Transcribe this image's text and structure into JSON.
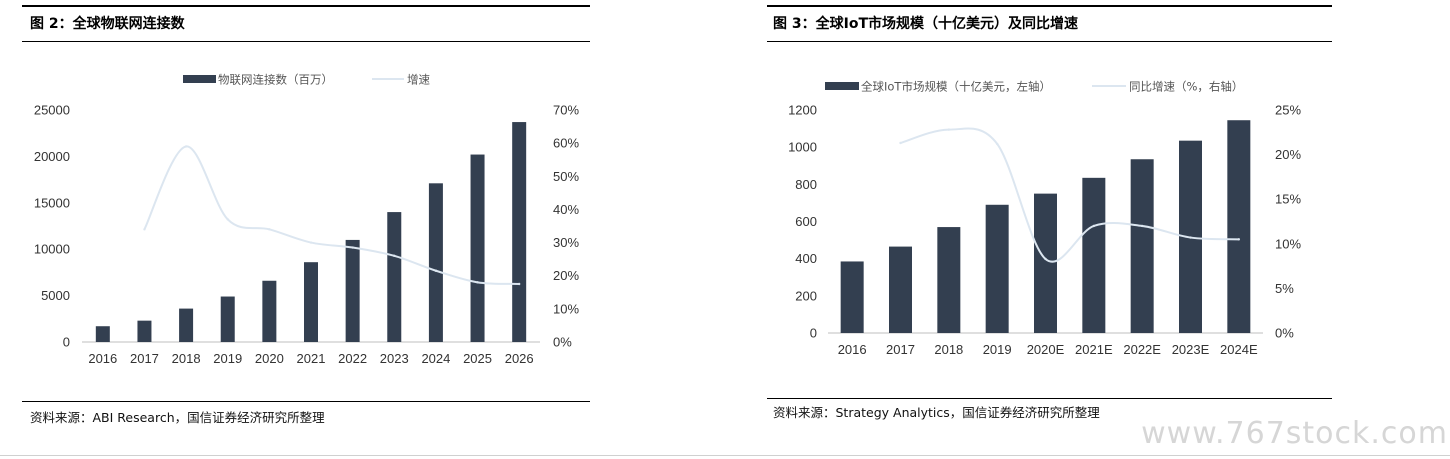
{
  "figures": [
    {
      "title": "图 2：全球物联网连接数",
      "source": "资料来源：ABI Research，国信证券经济研究所整理",
      "legend": {
        "bar": "物联网连接数（百万）",
        "line": "增速"
      },
      "left_ticks": [
        "25000",
        "20000",
        "15000",
        "10000",
        "5000",
        "0"
      ],
      "right_ticks": [
        "70%",
        "60%",
        "50%",
        "40%",
        "30%",
        "20%",
        "10%",
        "0%"
      ]
    },
    {
      "title": "图 3：全球IoT市场规模（十亿美元）及同比增速",
      "source": "资料来源：Strategy Analytics，国信证券经济研究所整理",
      "legend": {
        "bar": "全球IoT市场规模（十亿美元，左轴）",
        "line": "同比增速（%，右轴）"
      },
      "left_ticks": [
        "1200",
        "1000",
        "800",
        "600",
        "400",
        "200",
        "0"
      ],
      "right_ticks": [
        "25%",
        "20%",
        "15%",
        "10%",
        "5%",
        "0%"
      ]
    }
  ],
  "chart_data": [
    {
      "type": "bar",
      "title": "图 2：全球物联网连接数",
      "categories": [
        "2016",
        "2017",
        "2018",
        "2019",
        "2020",
        "2021",
        "2022",
        "2023",
        "2024",
        "2025",
        "2026"
      ],
      "series": [
        {
          "name": "物联网连接数（百万）",
          "type": "bar",
          "axis": "left",
          "color": "#333f50",
          "values": [
            1700,
            2300,
            3600,
            4900,
            6600,
            8600,
            11000,
            14000,
            17100,
            20200,
            23700
          ]
        },
        {
          "name": "增速",
          "type": "line",
          "axis": "right",
          "color": "#dce6f0",
          "values": [
            null,
            34,
            59,
            37,
            34,
            30,
            28.5,
            26,
            21.5,
            18,
            17.5
          ]
        }
      ],
      "ylim_left": [
        0,
        25000
      ],
      "ylim_right": [
        0,
        70
      ],
      "legend_position": "top",
      "grid": false
    },
    {
      "type": "bar",
      "title": "图 3：全球IoT市场规模（十亿美元）及同比增速",
      "categories": [
        "2016",
        "2017",
        "2018",
        "2019",
        "2020E",
        "2021E",
        "2022E",
        "2023E",
        "2024E"
      ],
      "series": [
        {
          "name": "全球IoT市场规模（十亿美元，左轴）",
          "type": "bar",
          "axis": "left",
          "color": "#333f50",
          "values": [
            385,
            465,
            570,
            690,
            750,
            835,
            935,
            1035,
            1145
          ]
        },
        {
          "name": "同比增速（%，右轴）",
          "type": "line",
          "axis": "right",
          "color": "#dce6f0",
          "values": [
            null,
            21.3,
            22.8,
            21.2,
            8.3,
            12.0,
            12.0,
            10.7,
            10.5
          ]
        }
      ],
      "ylim_left": [
        0,
        1200
      ],
      "ylim_right": [
        0,
        25
      ],
      "legend_position": "top",
      "grid": false
    }
  ]
}
